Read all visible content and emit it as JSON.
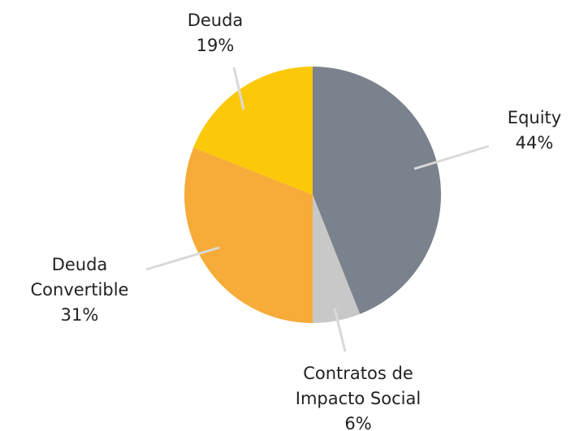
{
  "chart_data": {
    "type": "pie",
    "categories": [
      "Equity",
      "Contratos de Impacto Social",
      "Deuda Convertible",
      "Deuda"
    ],
    "values": [
      44,
      6,
      31,
      19
    ],
    "value_labels": [
      "44%",
      "6%",
      "31%",
      "19%"
    ],
    "colors": [
      "#7a828d",
      "#c8c8c8",
      "#f7ab38",
      "#fcc80a"
    ]
  }
}
